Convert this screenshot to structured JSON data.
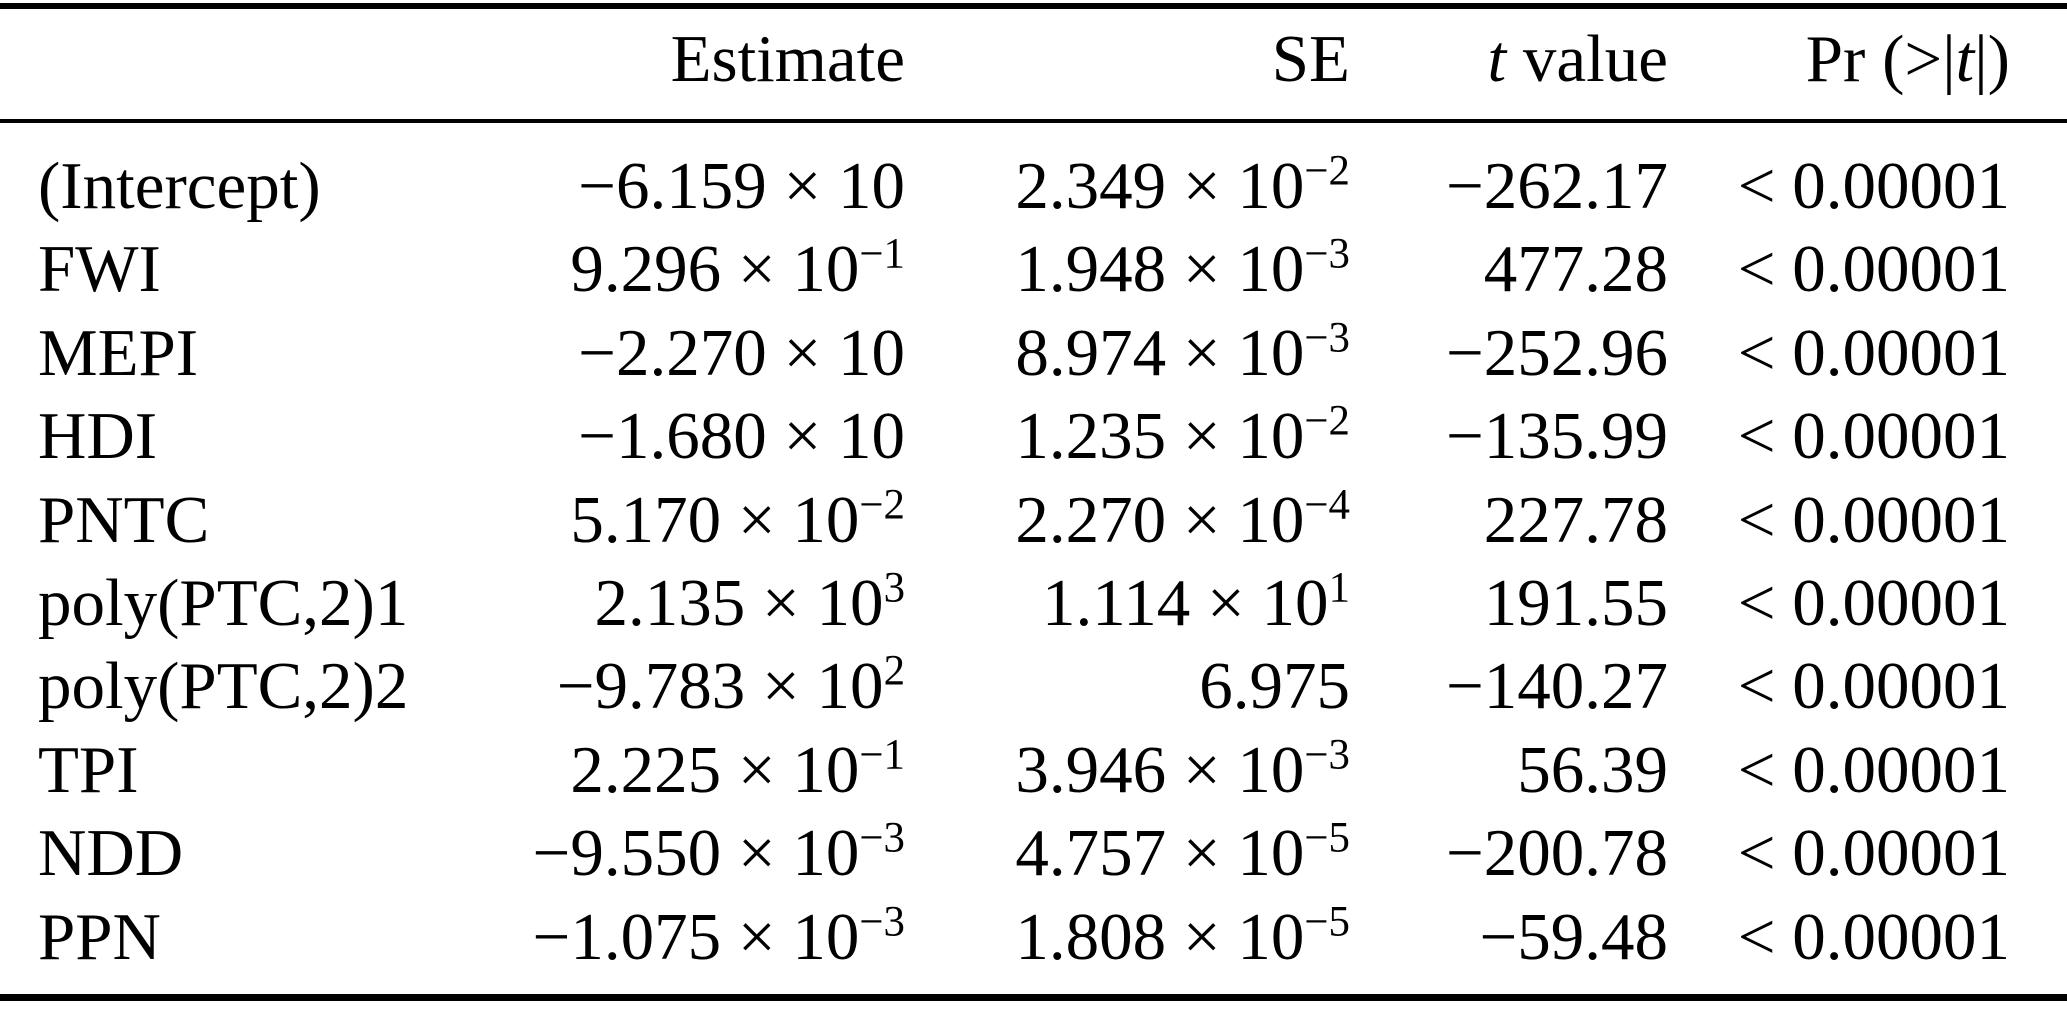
{
  "table": {
    "columns": [
      {
        "key": "term",
        "align": "left",
        "header": []
      },
      {
        "key": "estimate",
        "align": "right",
        "header": [
          {
            "text": "Estimate"
          }
        ]
      },
      {
        "key": "se",
        "align": "right",
        "header": [
          {
            "text": "SE"
          }
        ]
      },
      {
        "key": "t-value",
        "align": "right",
        "header": [
          {
            "text": "t",
            "italic": true
          },
          {
            "text": " value"
          }
        ]
      },
      {
        "key": "pr",
        "align": "right",
        "header": [
          {
            "text": "Pr (>|"
          },
          {
            "text": "t",
            "italic": true
          },
          {
            "text": "|)"
          }
        ]
      }
    ],
    "rows": [
      {
        "cells": [
          [
            {
              "text": "(Intercept)"
            }
          ],
          [
            {
              "text": "−6.159 × 10"
            }
          ],
          [
            {
              "text": "2.349 × 10"
            },
            {
              "text": "−2",
              "sup": true
            }
          ],
          [
            {
              "text": "−262.17"
            }
          ],
          [
            {
              "text": "< 0.00001"
            }
          ]
        ]
      },
      {
        "cells": [
          [
            {
              "text": "FWI"
            }
          ],
          [
            {
              "text": "9.296 × 10"
            },
            {
              "text": "−1",
              "sup": true
            }
          ],
          [
            {
              "text": "1.948 × 10"
            },
            {
              "text": "−3",
              "sup": true
            }
          ],
          [
            {
              "text": "477.28"
            }
          ],
          [
            {
              "text": "< 0.00001"
            }
          ]
        ]
      },
      {
        "cells": [
          [
            {
              "text": "MEPI"
            }
          ],
          [
            {
              "text": "−2.270 × 10"
            }
          ],
          [
            {
              "text": "8.974 × 10"
            },
            {
              "text": "−3",
              "sup": true
            }
          ],
          [
            {
              "text": "−252.96"
            }
          ],
          [
            {
              "text": "< 0.00001"
            }
          ]
        ]
      },
      {
        "cells": [
          [
            {
              "text": "HDI"
            }
          ],
          [
            {
              "text": "−1.680 × 10"
            }
          ],
          [
            {
              "text": "1.235 × 10"
            },
            {
              "text": "−2",
              "sup": true
            }
          ],
          [
            {
              "text": "−135.99"
            }
          ],
          [
            {
              "text": "< 0.00001"
            }
          ]
        ]
      },
      {
        "cells": [
          [
            {
              "text": "PNTC"
            }
          ],
          [
            {
              "text": "5.170 × 10"
            },
            {
              "text": "−2",
              "sup": true
            }
          ],
          [
            {
              "text": "2.270 × 10"
            },
            {
              "text": "−4",
              "sup": true
            }
          ],
          [
            {
              "text": "227.78"
            }
          ],
          [
            {
              "text": "< 0.00001"
            }
          ]
        ]
      },
      {
        "cells": [
          [
            {
              "text": "poly(PTC,2)1"
            }
          ],
          [
            {
              "text": "2.135 × 10"
            },
            {
              "text": "3",
              "sup": true
            }
          ],
          [
            {
              "text": "1.114 × 10"
            },
            {
              "text": "1",
              "sup": true
            }
          ],
          [
            {
              "text": "191.55"
            }
          ],
          [
            {
              "text": "< 0.00001"
            }
          ]
        ]
      },
      {
        "cells": [
          [
            {
              "text": "poly(PTC,2)2"
            }
          ],
          [
            {
              "text": "−9.783 × 10"
            },
            {
              "text": "2",
              "sup": true
            }
          ],
          [
            {
              "text": "6.975"
            }
          ],
          [
            {
              "text": "−140.27"
            }
          ],
          [
            {
              "text": "< 0.00001"
            }
          ]
        ]
      },
      {
        "cells": [
          [
            {
              "text": "TPI"
            }
          ],
          [
            {
              "text": "2.225 × 10"
            },
            {
              "text": "−1",
              "sup": true
            }
          ],
          [
            {
              "text": "3.946 × 10"
            },
            {
              "text": "−3",
              "sup": true
            }
          ],
          [
            {
              "text": "56.39"
            }
          ],
          [
            {
              "text": "< 0.00001"
            }
          ]
        ]
      },
      {
        "cells": [
          [
            {
              "text": "NDD"
            }
          ],
          [
            {
              "text": "−9.550 × 10"
            },
            {
              "text": "−3",
              "sup": true
            }
          ],
          [
            {
              "text": "4.757 × 10"
            },
            {
              "text": "−5",
              "sup": true
            }
          ],
          [
            {
              "text": "−200.78"
            }
          ],
          [
            {
              "text": "< 0.00001"
            }
          ]
        ]
      },
      {
        "cells": [
          [
            {
              "text": "PPN"
            }
          ],
          [
            {
              "text": "−1.075 × 10"
            },
            {
              "text": "−3",
              "sup": true
            }
          ],
          [
            {
              "text": "1.808 × 10"
            },
            {
              "text": "−5",
              "sup": true
            }
          ],
          [
            {
              "text": "−59.48"
            }
          ],
          [
            {
              "text": "< 0.00001"
            }
          ]
        ]
      }
    ]
  },
  "chart_data": {
    "type": "table",
    "columns": [
      "",
      "Estimate",
      "SE",
      "t value",
      "Pr (>|t|)"
    ],
    "rows": [
      [
        "(Intercept)",
        "−6.159 × 10",
        "2.349 × 10⁻²",
        "−262.17",
        "< 0.00001"
      ],
      [
        "FWI",
        "9.296 × 10⁻¹",
        "1.948 × 10⁻³",
        "477.28",
        "< 0.00001"
      ],
      [
        "MEPI",
        "−2.270 × 10",
        "8.974 × 10⁻³",
        "−252.96",
        "< 0.00001"
      ],
      [
        "HDI",
        "−1.680 × 10",
        "1.235 × 10⁻²",
        "−135.99",
        "< 0.00001"
      ],
      [
        "PNTC",
        "5.170 × 10⁻²",
        "2.270 × 10⁻⁴",
        "227.78",
        "< 0.00001"
      ],
      [
        "poly(PTC,2)1",
        "2.135 × 10³",
        "1.114 × 10¹",
        "191.55",
        "< 0.00001"
      ],
      [
        "poly(PTC,2)2",
        "−9.783 × 10²",
        "6.975",
        "−140.27",
        "< 0.00001"
      ],
      [
        "TPI",
        "2.225 × 10⁻¹",
        "3.946 × 10⁻³",
        "56.39",
        "< 0.00001"
      ],
      [
        "NDD",
        "−9.550 × 10⁻³",
        "4.757 × 10⁻⁵",
        "−200.78",
        "< 0.00001"
      ],
      [
        "PPN",
        "−1.075 × 10⁻³",
        "1.808 × 10⁻⁵",
        "−59.48",
        "< 0.00001"
      ]
    ]
  },
  "colors": {
    "text": "#000000",
    "background": "#ffffff",
    "rule": "#000000"
  }
}
